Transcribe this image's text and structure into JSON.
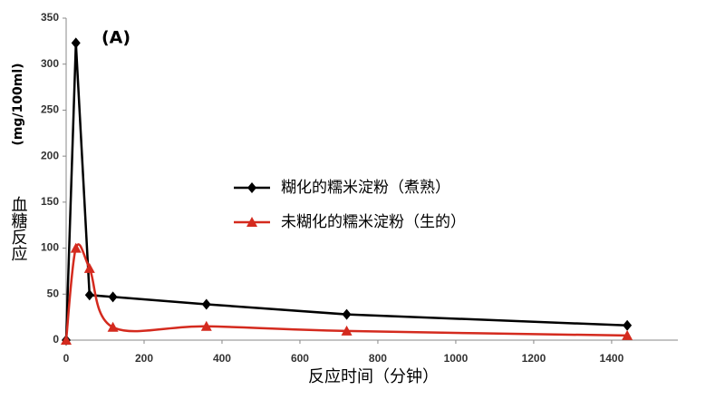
{
  "chart_data": {
    "type": "line",
    "annotation": "(A)",
    "ylabel": "(mg/100ml)",
    "ylabel2": "血糖反应",
    "xlabel": "反应时间（分钟）",
    "xlim": [
      0,
      1570
    ],
    "ylim": [
      0,
      350
    ],
    "xticks": [
      0,
      200,
      400,
      600,
      800,
      1000,
      1200,
      1400
    ],
    "yticks": [
      0,
      50,
      100,
      150,
      200,
      250,
      300,
      350
    ],
    "legend": "center",
    "series": [
      {
        "name": "糊化的糯米淀粉（煮熟）",
        "color": "#000000",
        "marker": "diamond",
        "smooth": false,
        "x": [
          0,
          25,
          60,
          120,
          360,
          720,
          1440
        ],
        "values": [
          0,
          323,
          49,
          47,
          39,
          28,
          16
        ]
      },
      {
        "name": "未糊化的糯米淀粉（生的）",
        "color": "#d42a1e",
        "marker": "triangle",
        "smooth": true,
        "x": [
          0,
          25,
          60,
          120,
          360,
          720,
          1440
        ],
        "values": [
          0,
          100,
          78,
          14,
          15,
          10,
          5
        ]
      }
    ]
  }
}
